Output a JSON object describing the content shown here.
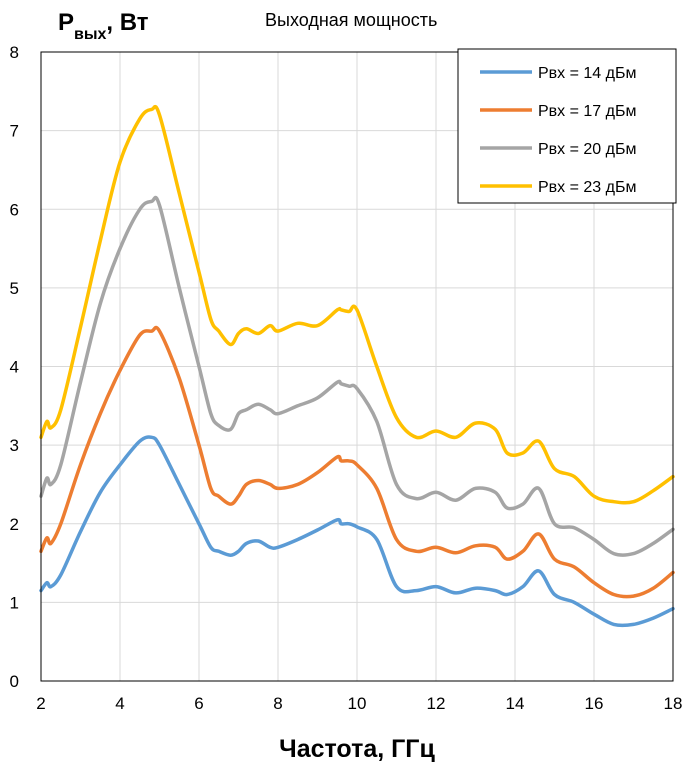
{
  "chart_data": {
    "type": "line",
    "title": "Выходная мощность",
    "ylabel": {
      "main": "P",
      "sub": "вых",
      "rest": ", Вт"
    },
    "xlabel": "Частота, ГГц",
    "xlim": [
      2,
      18
    ],
    "ylim": [
      0,
      8
    ],
    "xticks": [
      2,
      4,
      6,
      8,
      10,
      12,
      14,
      16,
      18
    ],
    "yticks": [
      0,
      1,
      2,
      3,
      4,
      5,
      6,
      7,
      8
    ],
    "grid": true,
    "legend_position": "top-right",
    "series": [
      {
        "name": "Рвх = 14 дБм",
        "color": "#5b9bd5",
        "x": [
          2,
          2.15,
          2.25,
          2.5,
          3,
          3.5,
          4,
          4.5,
          4.8,
          5,
          5.5,
          6,
          6.3,
          6.5,
          6.8,
          7,
          7.2,
          7.5,
          7.8,
          8,
          8.5,
          9,
          9.5,
          9.6,
          9.8,
          10,
          10.5,
          11,
          11.5,
          12,
          12.5,
          13,
          13.5,
          13.8,
          14.2,
          14.6,
          15,
          15.5,
          16,
          16.5,
          17,
          17.5,
          18
        ],
        "y": [
          1.15,
          1.25,
          1.2,
          1.35,
          1.9,
          2.4,
          2.75,
          3.05,
          3.1,
          3.0,
          2.5,
          2.0,
          1.7,
          1.65,
          1.6,
          1.65,
          1.75,
          1.78,
          1.7,
          1.7,
          1.8,
          1.92,
          2.05,
          2.0,
          2.0,
          1.96,
          1.8,
          1.2,
          1.15,
          1.2,
          1.12,
          1.18,
          1.15,
          1.1,
          1.2,
          1.4,
          1.1,
          1.0,
          0.85,
          0.72,
          0.72,
          0.8,
          0.92
        ]
      },
      {
        "name": "Рвх = 17 дБм",
        "color": "#ed7d31",
        "x": [
          2,
          2.15,
          2.25,
          2.5,
          3,
          3.5,
          4,
          4.5,
          4.8,
          5,
          5.5,
          6,
          6.3,
          6.5,
          6.8,
          7,
          7.2,
          7.5,
          7.8,
          8,
          8.5,
          9,
          9.5,
          9.6,
          9.8,
          10,
          10.5,
          11,
          11.5,
          12,
          12.5,
          13,
          13.5,
          13.8,
          14.2,
          14.6,
          15,
          15.5,
          16,
          16.5,
          17,
          17.5,
          18
        ],
        "y": [
          1.65,
          1.82,
          1.75,
          2.0,
          2.75,
          3.4,
          3.95,
          4.4,
          4.45,
          4.45,
          3.85,
          3.0,
          2.45,
          2.35,
          2.25,
          2.35,
          2.5,
          2.55,
          2.5,
          2.45,
          2.5,
          2.65,
          2.85,
          2.8,
          2.8,
          2.75,
          2.45,
          1.8,
          1.65,
          1.7,
          1.63,
          1.72,
          1.7,
          1.55,
          1.65,
          1.87,
          1.55,
          1.45,
          1.25,
          1.1,
          1.08,
          1.18,
          1.38
        ]
      },
      {
        "name": "Рвх = 20 дБм",
        "color": "#a5a5a5",
        "x": [
          2,
          2.15,
          2.25,
          2.5,
          3,
          3.5,
          4,
          4.5,
          4.8,
          5,
          5.5,
          6,
          6.3,
          6.5,
          6.8,
          7,
          7.2,
          7.5,
          7.8,
          8,
          8.5,
          9,
          9.5,
          9.6,
          9.8,
          10,
          10.5,
          11,
          11.5,
          12,
          12.5,
          13,
          13.5,
          13.8,
          14.2,
          14.6,
          15,
          15.5,
          16,
          16.5,
          17,
          17.5,
          18
        ],
        "y": [
          2.35,
          2.58,
          2.5,
          2.75,
          3.8,
          4.8,
          5.5,
          6.0,
          6.1,
          6.05,
          5.0,
          4.0,
          3.4,
          3.25,
          3.2,
          3.4,
          3.45,
          3.52,
          3.45,
          3.4,
          3.5,
          3.6,
          3.8,
          3.78,
          3.75,
          3.72,
          3.3,
          2.5,
          2.32,
          2.4,
          2.3,
          2.45,
          2.4,
          2.2,
          2.25,
          2.45,
          2.0,
          1.95,
          1.8,
          1.62,
          1.62,
          1.75,
          1.93
        ]
      },
      {
        "name": "Рвх = 23 дБм",
        "color": "#ffc000",
        "x": [
          2,
          2.15,
          2.25,
          2.5,
          3,
          3.5,
          4,
          4.5,
          4.8,
          5,
          5.5,
          6,
          6.3,
          6.5,
          6.8,
          7,
          7.2,
          7.5,
          7.8,
          8,
          8.5,
          9,
          9.5,
          9.6,
          9.8,
          10,
          10.5,
          11,
          11.5,
          12,
          12.5,
          13,
          13.5,
          13.8,
          14.2,
          14.6,
          15,
          15.5,
          16,
          16.5,
          17,
          17.5,
          18
        ],
        "y": [
          3.1,
          3.3,
          3.22,
          3.45,
          4.5,
          5.6,
          6.6,
          7.15,
          7.27,
          7.2,
          6.2,
          5.2,
          4.6,
          4.45,
          4.28,
          4.42,
          4.48,
          4.42,
          4.52,
          4.45,
          4.55,
          4.52,
          4.72,
          4.72,
          4.7,
          4.72,
          4.0,
          3.35,
          3.1,
          3.18,
          3.1,
          3.28,
          3.2,
          2.9,
          2.9,
          3.05,
          2.7,
          2.6,
          2.35,
          2.28,
          2.28,
          2.42,
          2.6
        ]
      }
    ]
  }
}
